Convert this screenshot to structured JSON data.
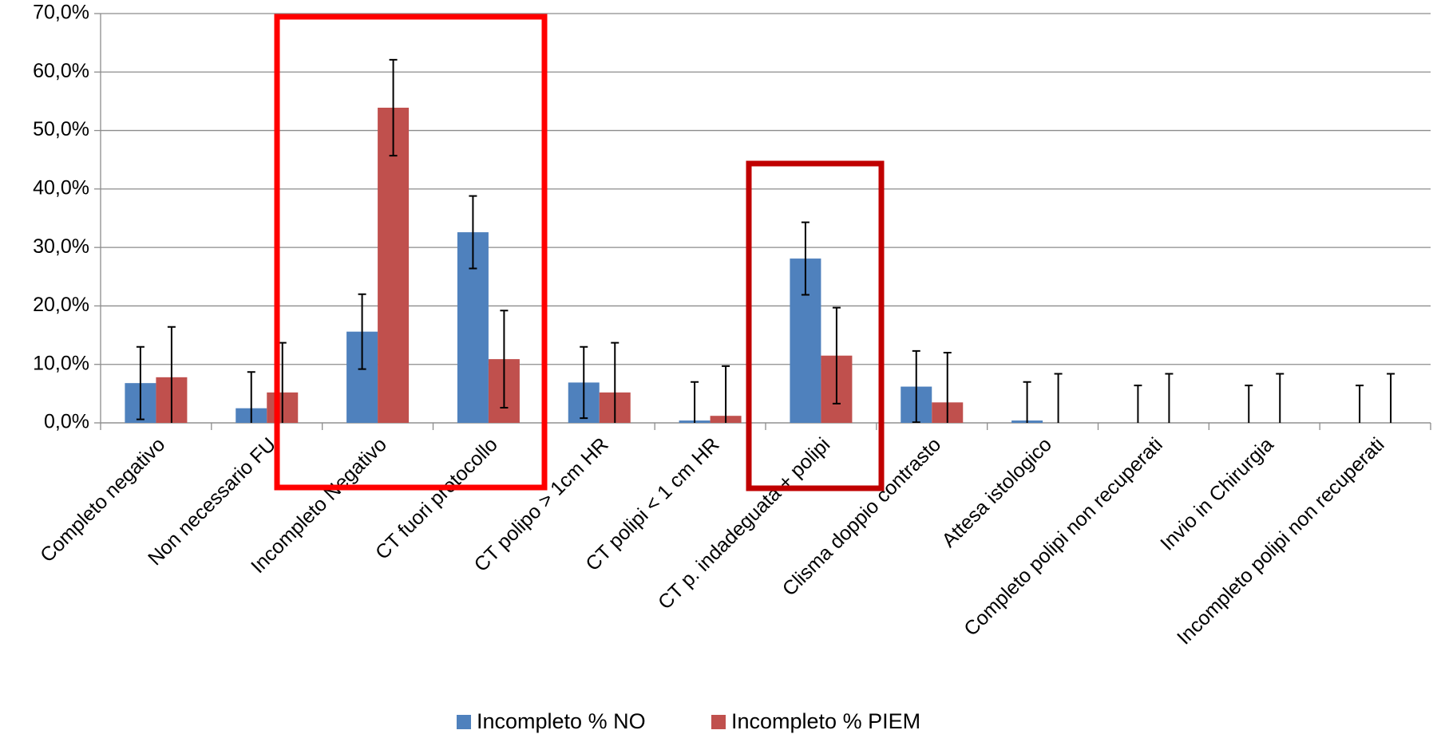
{
  "chart_data": {
    "type": "bar",
    "categories": [
      "Completo negativo",
      "Non necessario FU",
      "Incompleto Negativo",
      "CT fuori protocollo",
      "CT polipo > 1cm HR",
      "CT polipi < 1 cm HR",
      "CT p. indadeguata +  polipi",
      "Clisma  doppio contrasto",
      "Attesa istologico",
      "Completo polipi non recuperati",
      "Invio in Chirurgia",
      "Incompleto polipi non recuperati"
    ],
    "series": [
      {
        "name": "Incompleto % NO",
        "color": "#4f81bd",
        "values": [
          6.8,
          2.5,
          15.6,
          32.6,
          6.9,
          0.4,
          28.1,
          6.2,
          0.4,
          0,
          0,
          0
        ],
        "errors": [
          6.2,
          6.2,
          6.4,
          6.2,
          6.1,
          6.6,
          6.2,
          6.1,
          6.6,
          6.4,
          6.4,
          6.4
        ]
      },
      {
        "name": "Incompleto % PIEM",
        "color": "#c0504d",
        "values": [
          7.8,
          5.2,
          53.9,
          10.9,
          5.2,
          1.2,
          11.5,
          3.5,
          0,
          0,
          0,
          0
        ],
        "errors": [
          8.6,
          8.5,
          8.2,
          8.3,
          8.5,
          8.5,
          8.2,
          8.5,
          8.4,
          8.4,
          8.4,
          8.4
        ]
      }
    ],
    "ylim": [
      0,
      70
    ],
    "yticks": [
      {
        "value": 0,
        "label": "0,0%"
      },
      {
        "value": 10,
        "label": "10,0%"
      },
      {
        "value": 20,
        "label": "20,0%"
      },
      {
        "value": 30,
        "label": "30,0%"
      },
      {
        "value": 40,
        "label": "40,0%"
      },
      {
        "value": 50,
        "label": "50,0%"
      },
      {
        "value": 60,
        "label": "60,0%"
      },
      {
        "value": 70,
        "label": "70,0%"
      }
    ],
    "grid": true,
    "legend": "bottom"
  }
}
